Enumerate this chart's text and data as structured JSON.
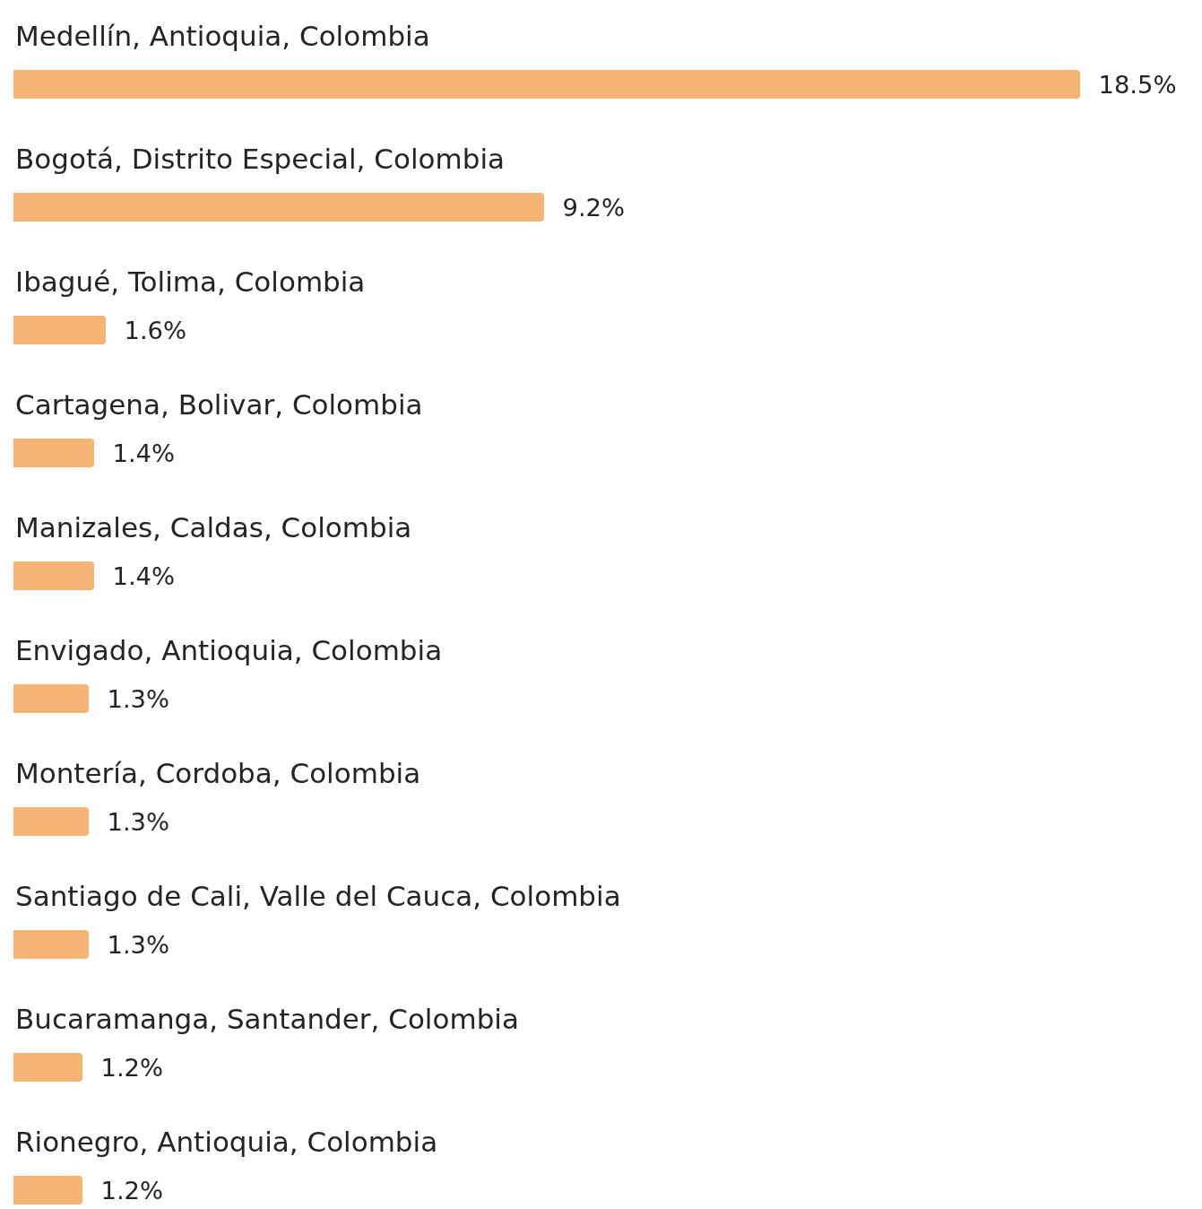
{
  "chart_data": {
    "type": "bar",
    "orientation": "horizontal",
    "categories": [
      "Medellín, Antioquia, Colombia",
      "Bogotá, Distrito Especial, Colombia",
      "Ibagué, Tolima, Colombia",
      "Cartagena, Bolivar, Colombia",
      "Manizales, Caldas, Colombia",
      "Envigado, Antioquia, Colombia",
      "Montería, Cordoba, Colombia",
      "Santiago de Cali, Valle del Cauca, Colombia",
      "Bucaramanga, Santander, Colombia",
      "Rionegro, Antioquia, Colombia"
    ],
    "values": [
      18.5,
      9.2,
      1.6,
      1.4,
      1.4,
      1.3,
      1.3,
      1.3,
      1.2,
      1.2
    ],
    "value_labels": [
      "18.5%",
      "9.2%",
      "1.6%",
      "1.4%",
      "1.4%",
      "1.3%",
      "1.3%",
      "1.3%",
      "1.2%",
      "1.2%"
    ],
    "color": "#f6b474"
  }
}
